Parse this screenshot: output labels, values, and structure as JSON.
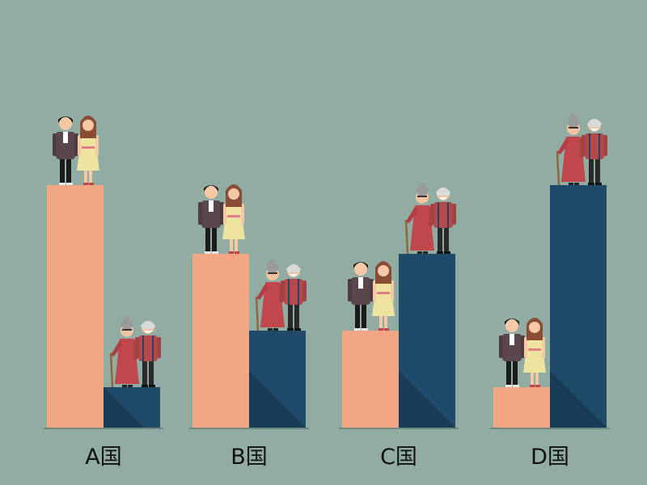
{
  "chart_data": {
    "type": "bar",
    "categories": [
      "A国",
      "B国",
      "C国",
      "D国"
    ],
    "series": [
      {
        "values": [
          300,
          215,
          120,
          50
        ]
      },
      {
        "values": [
          50,
          120,
          215,
          300
        ]
      }
    ],
    "ylim": [
      0,
      330
    ],
    "grid": false,
    "legend": "none"
  },
  "colors": {
    "background": "#90aca3",
    "young_bar": "#f2a684",
    "elder_bar": "#1f4a68",
    "elder_bar_shadow": "#183c55",
    "baseline": "#6f8880",
    "category_label": "#111111"
  },
  "icons": {
    "young_group": "young-couple-icon",
    "elder_group": "elderly-couple-icon"
  }
}
